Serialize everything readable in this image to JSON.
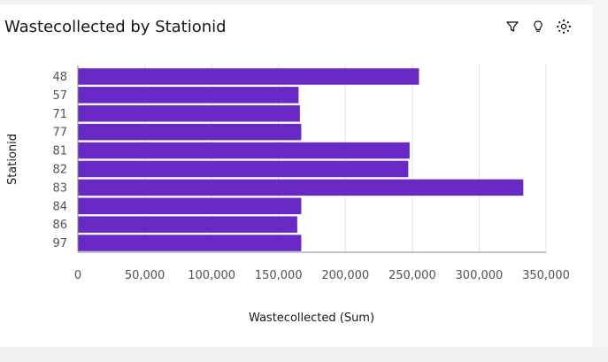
{
  "card": {
    "title": "Wastecollected by Stationid"
  },
  "toolbar": {
    "icons": [
      "filter-icon",
      "lightbulb-icon",
      "settings-icon"
    ]
  },
  "colors": {
    "bar": "#6929c4",
    "grid": "#e0e0e0",
    "axis": "#8d8d8d",
    "text": "#525252",
    "title": "#161616"
  },
  "chart_data": {
    "type": "bar",
    "orientation": "horizontal",
    "title": "Wastecollected by Stationid",
    "xlabel": "Wastecollected (Sum)",
    "ylabel": "Stationid",
    "categories": [
      "48",
      "57",
      "71",
      "77",
      "81",
      "82",
      "83",
      "84",
      "86",
      "97"
    ],
    "values": [
      255000,
      165000,
      166000,
      167000,
      248000,
      247000,
      333000,
      167000,
      164000,
      167000
    ],
    "xlim": [
      0,
      350000
    ],
    "xticks": [
      0,
      50000,
      100000,
      150000,
      200000,
      250000,
      300000,
      350000
    ],
    "xtick_labels": [
      "0",
      "50,000",
      "100,000",
      "150,000",
      "200,000",
      "250,000",
      "300,000",
      "350,000"
    ],
    "grid": true,
    "legend": "none"
  }
}
